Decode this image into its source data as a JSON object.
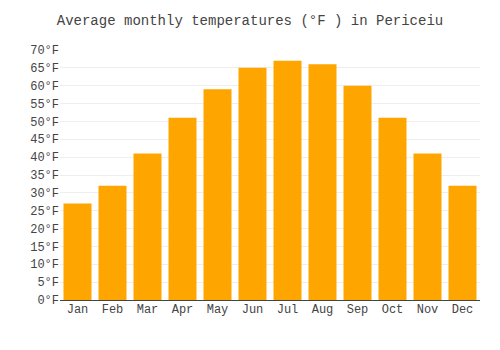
{
  "chart_data": {
    "type": "bar",
    "title": "Average monthly temperatures (°F ) in Periceiu",
    "categories": [
      "Jan",
      "Feb",
      "Mar",
      "Apr",
      "May",
      "Jun",
      "Jul",
      "Aug",
      "Sep",
      "Oct",
      "Nov",
      "Dec"
    ],
    "values": [
      27,
      32,
      41,
      51,
      59,
      65,
      67,
      66,
      60,
      51,
      41,
      32
    ],
    "color": "#FFA500",
    "ylim": [
      0,
      70
    ],
    "yticks": [
      {
        "value": 0,
        "label": "0°F"
      },
      {
        "value": 5,
        "label": "5°F"
      },
      {
        "value": 10,
        "label": "10°F"
      },
      {
        "value": 15,
        "label": "15°F"
      },
      {
        "value": 20,
        "label": "20°F"
      },
      {
        "value": 25,
        "label": "25°F"
      },
      {
        "value": 30,
        "label": "30°F"
      },
      {
        "value": 35,
        "label": "35°F"
      },
      {
        "value": 40,
        "label": "40°F"
      },
      {
        "value": 45,
        "label": "45°F"
      },
      {
        "value": 50,
        "label": "50°F"
      },
      {
        "value": 55,
        "label": "55°F"
      },
      {
        "value": 60,
        "label": "60°F"
      },
      {
        "value": 65,
        "label": "65°F"
      },
      {
        "value": 70,
        "label": "70°F"
      }
    ],
    "grid": true
  }
}
